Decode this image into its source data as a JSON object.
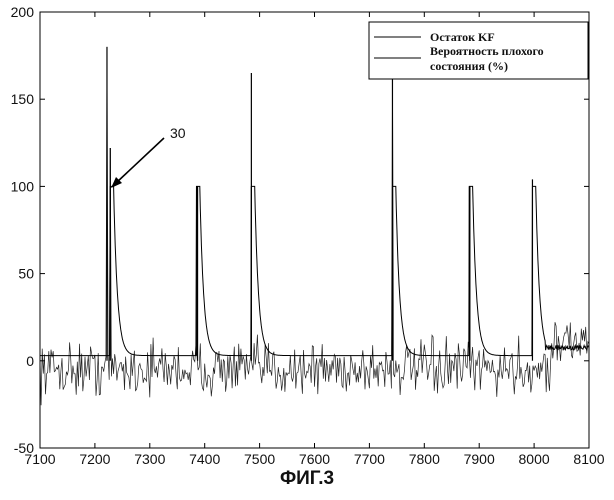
{
  "chart_data": {
    "type": "line",
    "title": "",
    "xlabel": "",
    "ylabel": "",
    "xlim": [
      7100,
      8100
    ],
    "ylim": [
      -50,
      200
    ],
    "x_ticks": [
      7100,
      7200,
      7300,
      7400,
      7500,
      7600,
      7700,
      7800,
      7900,
      8000,
      8100
    ],
    "y_ticks": [
      -50,
      0,
      50,
      100,
      150,
      200
    ],
    "grid": false,
    "legend_position": "top-right",
    "series": [
      {
        "name": "Остаток KF",
        "description": "noisy residual around 0 (about -25 to +20) with spikes",
        "baseline_noise_range": [
          -25,
          20
        ],
        "spikes": [
          {
            "x": 7222,
            "peak": 180
          },
          {
            "x": 7228,
            "peak": 122
          },
          {
            "x": 7387,
            "peak": 100
          },
          {
            "x": 7485,
            "peak": 165
          },
          {
            "x": 7742,
            "peak": 168
          },
          {
            "x": 7883,
            "peak": 100
          },
          {
            "x": 7997,
            "peak": 104
          }
        ]
      },
      {
        "name": "Вероятность плохого состояния (%)",
        "description": "baseline near 2-4 % with jumps to 100 % decaying back",
        "baseline": 3,
        "jumps": [
          {
            "x": 7228,
            "peak": 100
          },
          {
            "x": 7385,
            "peak": 100
          },
          {
            "x": 7485,
            "peak": 100
          },
          {
            "x": 7742,
            "peak": 100
          },
          {
            "x": 7882,
            "peak": 100
          },
          {
            "x": 7997,
            "peak": 100
          }
        ]
      }
    ],
    "annotation": {
      "label": "30",
      "target_x": 7230,
      "target_y": 100
    }
  },
  "caption": "ФИГ.3"
}
